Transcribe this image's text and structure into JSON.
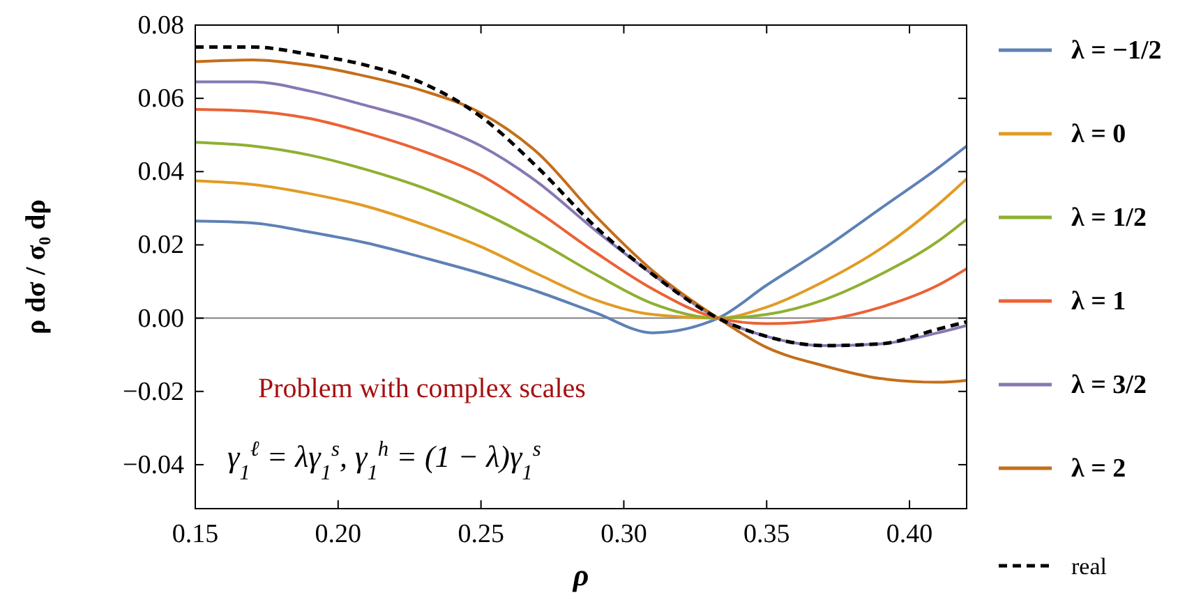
{
  "chart_data": {
    "type": "line",
    "xlabel": "ρ",
    "ylabel": "ρ dσ / σ₀ dρ",
    "x": [
      0.15,
      0.17,
      0.19,
      0.21,
      0.23,
      0.25,
      0.27,
      0.29,
      0.31,
      0.333,
      0.35,
      0.37,
      0.39,
      0.41,
      0.42
    ],
    "xlim": [
      0.15,
      0.42
    ],
    "ylim": [
      -0.052,
      0.08
    ],
    "xticks": [
      0.15,
      {
        "value": 0.2,
        "label": "0.20"
      },
      0.25,
      {
        "value": 0.3,
        "label": "0.30"
      },
      0.35,
      {
        "value": 0.4,
        "label": "0.40"
      }
    ],
    "yticks": [
      {
        "value": -0.04,
        "label": "−0.04"
      },
      {
        "value": -0.02,
        "label": "−0.02"
      },
      {
        "value": 0,
        "label": "0.00"
      },
      0.02,
      0.04,
      0.06,
      0.08
    ],
    "grid": false,
    "legend": "right",
    "line_style": "solid",
    "series": [
      {
        "name": "λ = −1/2",
        "color": "#5e81b5",
        "values": [
          0.0265,
          0.026,
          0.0235,
          0.0205,
          0.0165,
          0.0122,
          0.0072,
          0.0015,
          -0.004,
          0,
          0.009,
          0.019,
          0.03,
          0.041,
          0.047
        ]
      },
      {
        "name": "λ = 0",
        "color": "#e19c24",
        "values": [
          0.0375,
          0.0365,
          0.034,
          0.0305,
          0.0255,
          0.0195,
          0.012,
          0.005,
          0.001,
          0,
          0.003,
          0.01,
          0.019,
          0.031,
          0.038
        ]
      },
      {
        "name": "λ = 1/2",
        "color": "#8fb032",
        "values": [
          0.048,
          0.047,
          0.0445,
          0.0405,
          0.0355,
          0.029,
          0.021,
          0.012,
          0.004,
          0,
          0.001,
          0.005,
          0.012,
          0.021,
          0.027
        ]
      },
      {
        "name": "λ = 1",
        "color": "#eb6235",
        "values": [
          0.057,
          0.0565,
          0.0545,
          0.0505,
          0.0455,
          0.039,
          0.029,
          0.018,
          0.008,
          0,
          -0.0015,
          -0.0005,
          0.003,
          0.009,
          0.0135
        ]
      },
      {
        "name": "λ = 3/2",
        "color": "#8778b3",
        "values": [
          0.0645,
          0.0645,
          0.062,
          0.058,
          0.0535,
          0.047,
          0.037,
          0.024,
          0.012,
          0,
          -0.005,
          -0.0075,
          -0.007,
          -0.004,
          -0.002
        ]
      },
      {
        "name": "λ = 2",
        "color": "#c56e1a",
        "values": [
          0.07,
          0.0705,
          0.069,
          0.066,
          0.062,
          0.056,
          0.045,
          0.028,
          0.013,
          0,
          -0.008,
          -0.013,
          -0.0165,
          -0.0175,
          -0.017
        ]
      },
      {
        "name": "real",
        "color": "#000000",
        "line_style": "dashed",
        "values": [
          0.074,
          0.074,
          0.072,
          0.069,
          0.064,
          0.055,
          0.041,
          0.025,
          0.012,
          0,
          -0.005,
          -0.0075,
          -0.007,
          -0.003,
          -0.001
        ]
      }
    ],
    "ref_lines": [
      {
        "axis": "y",
        "value": 0,
        "color": "#808080"
      }
    ],
    "annotations": [
      "Problem with complex scales",
      "γ$_{1}$$^{ℓ}$ = λγ$_{1}$$^{s}$,   γ$_{1}$$^{h}$ = (1 − λ)γ$_{1}$$^{s}$"
    ]
  }
}
